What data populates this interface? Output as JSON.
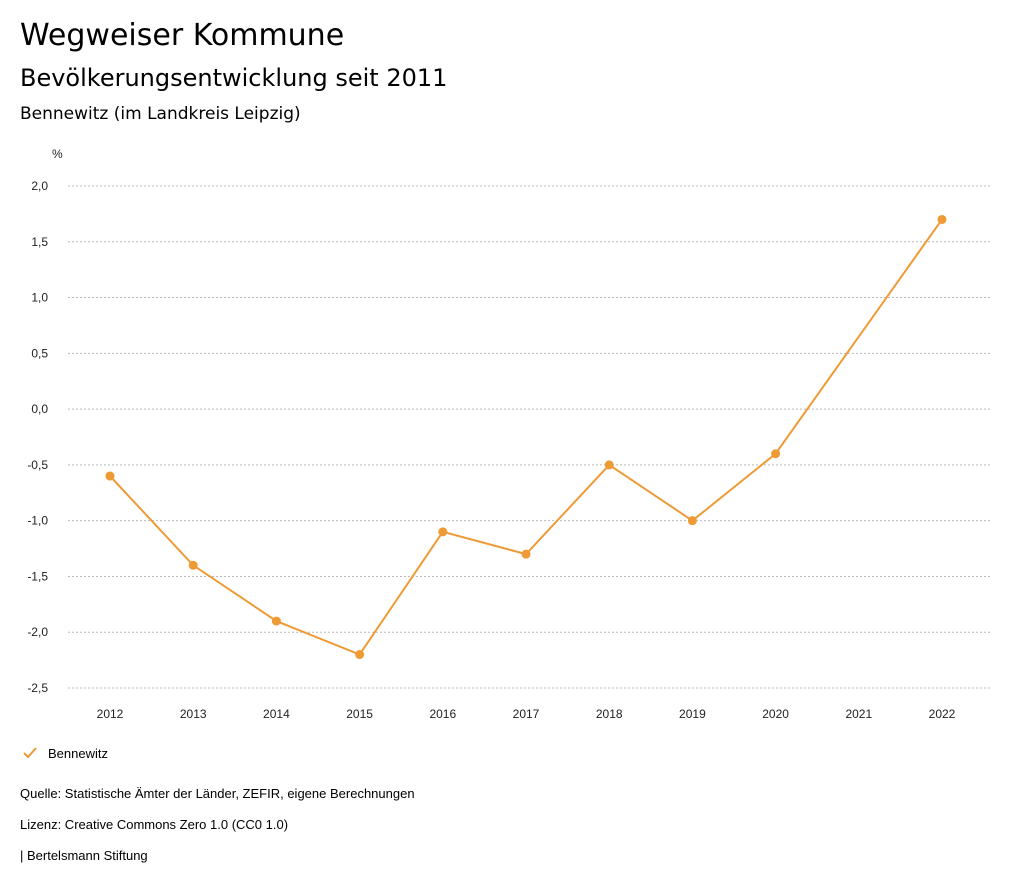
{
  "header": {
    "title": "Wegweiser Kommune",
    "subtitle": "Bevölkerungsentwicklung seit 2011",
    "region": "Bennewitz (im Landkreis Leipzig)"
  },
  "chart_data": {
    "type": "line",
    "ylabel": "%",
    "x": [
      "2012",
      "2013",
      "2014",
      "2015",
      "2016",
      "2017",
      "2018",
      "2019",
      "2020",
      "2021",
      "2022"
    ],
    "series": [
      {
        "name": "Bennewitz",
        "color": "#ee9a35",
        "values": [
          -0.6,
          -1.4,
          -1.9,
          -2.2,
          -1.1,
          -1.3,
          -0.5,
          -1.0,
          -0.4,
          null,
          1.7
        ]
      }
    ],
    "ylim": [
      -2.5,
      2.0
    ],
    "yticks": [
      "2,0",
      "1,5",
      "1,0",
      "0,5",
      "0,0",
      "-0,5",
      "-1,0",
      "-1,5",
      "-2,0",
      "-2,5"
    ],
    "ytick_values": [
      2.0,
      1.5,
      1.0,
      0.5,
      0.0,
      -0.5,
      -1.0,
      -1.5,
      -2.0,
      -2.5
    ],
    "grid": true,
    "legend_position": "bottom-left"
  },
  "legend": {
    "label": "Bennewitz",
    "icon": "check-icon"
  },
  "footer": {
    "source": "Quelle: Statistische Ämter der Länder, ZEFIR, eigene Berechnungen",
    "license": "Lizenz: Creative Commons Zero 1.0 (CC0 1.0)",
    "publisher": "| Bertelsmann Stiftung"
  }
}
